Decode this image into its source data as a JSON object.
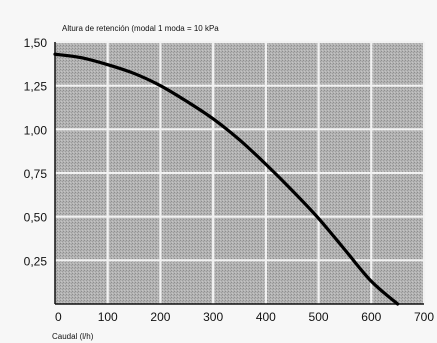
{
  "chart_data": {
    "type": "line",
    "title": "Altura de retención (modal 1 moda = 10 kPa",
    "xlabel": "Caudal (l/h)",
    "ylabel": "",
    "xlim": [
      0,
      700
    ],
    "ylim": [
      0,
      1.5
    ],
    "x_ticks": [
      0,
      100,
      200,
      300,
      400,
      500,
      600,
      700
    ],
    "x_tick_labels": [
      "0",
      "100",
      "200",
      "300",
      "400",
      "500",
      "600",
      "700"
    ],
    "y_ticks": [
      0.25,
      0.5,
      0.75,
      1.0,
      1.25,
      1.5
    ],
    "y_tick_labels": [
      "0,25",
      "0,50",
      "0,75",
      "1,00",
      "1,25",
      "1,50"
    ],
    "grid": true,
    "legend": "none",
    "series": [
      {
        "x": [
          0,
          50,
          100,
          150,
          200,
          250,
          300,
          350,
          400,
          450,
          500,
          550,
          600,
          650
        ],
        "y": [
          1.43,
          1.41,
          1.37,
          1.32,
          1.25,
          1.16,
          1.06,
          0.94,
          0.8,
          0.65,
          0.49,
          0.31,
          0.13,
          0.0
        ]
      }
    ],
    "colors": {
      "plot_background": "#a9a9a9",
      "grid": "#f2f2f2",
      "curve": "#000000",
      "axis": "#111111"
    }
  }
}
